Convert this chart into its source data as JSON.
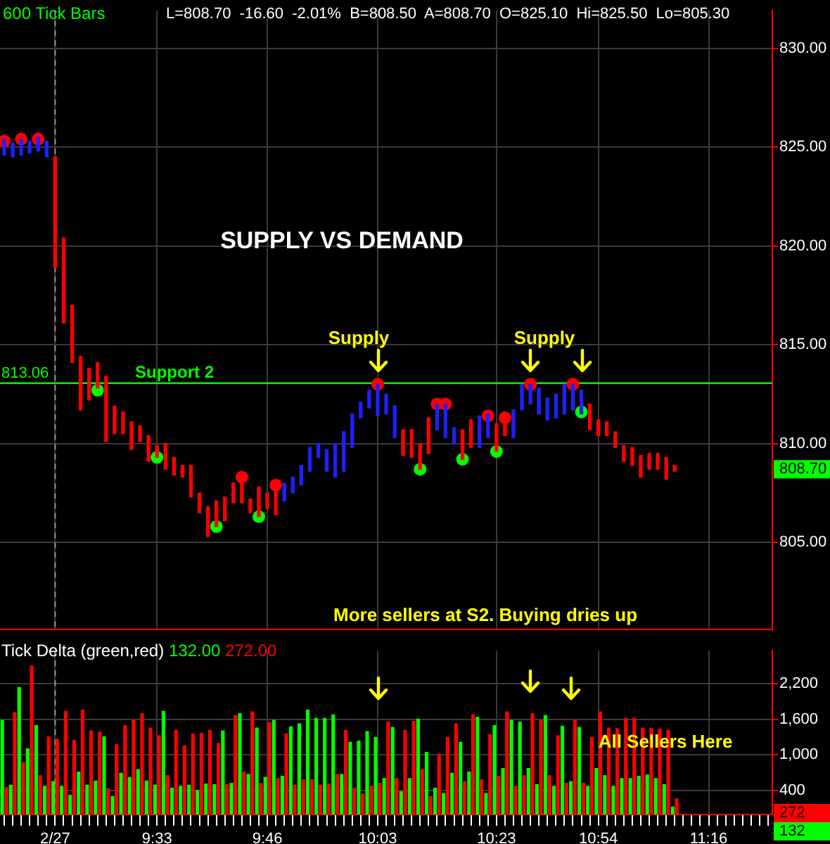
{
  "chart_data": [
    {
      "type": "bar",
      "title": "600 Tick Bars",
      "subtitle": "L=808.70  -16.60  -2.01%  B=808.50  A=808.70  O=825.10  Hi=825.50  Lo=805.30",
      "categories": [
        null,
        null,
        null,
        null,
        null,
        null,
        "2/27",
        null,
        null,
        null,
        null,
        null,
        null,
        null,
        null,
        null,
        null,
        null,
        "9:33",
        null,
        null,
        null,
        null,
        null,
        null,
        null,
        null,
        null,
        null,
        null,
        null,
        "9:46",
        null,
        null,
        null,
        null,
        null,
        null,
        null,
        null,
        null,
        null,
        null,
        null,
        "10:03",
        null,
        null,
        null,
        null,
        null,
        null,
        null,
        null,
        null,
        null,
        null,
        null,
        null,
        "10:23",
        null,
        null,
        null,
        null,
        null,
        null,
        null,
        null,
        null,
        null,
        null,
        "10:54",
        null,
        null,
        null,
        null,
        null,
        null,
        null,
        null,
        null,
        null,
        null,
        null,
        "11:16",
        null,
        null,
        null,
        null,
        null,
        null,
        null
      ],
      "base": [
        824.6,
        824.5,
        824.6,
        824.7,
        824.8,
        824.5,
        818.9,
        816.1,
        814.1,
        811.7,
        812.2,
        812.8,
        810.1,
        810.5,
        810.5,
        809.7,
        810.1,
        809.1,
        809.3,
        808.7,
        808.4,
        808.3,
        807.3,
        806.5,
        805.3,
        805.8,
        806.1,
        807.0,
        807.0,
        806.5,
        806.3,
        806.7,
        806.4,
        807.1,
        807.5,
        807.9,
        808.6,
        809.3,
        808.6,
        808.3,
        808.6,
        809.8,
        811.3,
        811.8,
        811.4,
        811.5,
        810.3,
        809.4,
        809.3,
        808.7,
        809.5,
        810.7,
        810.3,
        810.0,
        809.2,
        809.8,
        809.8,
        810.3,
        809.6,
        810.4,
        810.3,
        811.7,
        812.0,
        811.5,
        811.2,
        811.3,
        811.5,
        811.7,
        811.5,
        810.7,
        810.4,
        810.4,
        809.8,
        809.1,
        808.9,
        808.3,
        808.7,
        808.7,
        808.2,
        808.6,
        null,
        null,
        null,
        null,
        null,
        null,
        null,
        null,
        null,
        null,
        null
      ],
      "values": [
        0.8,
        0.7,
        0.8,
        0.6,
        0.7,
        0.8,
        5.6,
        4.3,
        2.9,
        2.7,
        1.6,
        1.3,
        3.3,
        1.4,
        1.1,
        1.4,
        0.8,
        1.3,
        0.6,
        1.3,
        0.9,
        0.6,
        1.6,
        1.0,
        1.5,
        1.3,
        1.2,
        1.0,
        1.0,
        0.7,
        1.5,
        0.8,
        1.2,
        0.9,
        0.8,
        1.0,
        1.2,
        0.7,
        1.1,
        1.7,
        2.0,
        1.7,
        0.8,
        0.9,
        1.6,
        1.0,
        1.6,
        1.3,
        1.4,
        1.3,
        1.8,
        1.3,
        1.7,
        0.8,
        1.5,
        1.4,
        1.6,
        1.2,
        1.4,
        0.6,
        1.4,
        1.3,
        1.0,
        1.3,
        1.1,
        1.2,
        1.5,
        1.3,
        1.2,
        1.3,
        0.8,
        0.7,
        0.8,
        0.8,
        0.9,
        1.1,
        0.8,
        0.8,
        1.1,
        0.3,
        null,
        null,
        null,
        null,
        null,
        null,
        null,
        null,
        null,
        null,
        null
      ],
      "colors": [
        "#2020ff",
        "#2020ff",
        "#2020ff",
        "#2020ff",
        "#2020ff",
        "#2020ff",
        "#ff0000",
        "#ff0000",
        "#ff0000",
        "#ff0000",
        "#ff0000",
        "#ff0000",
        "#ff0000",
        "#ff0000",
        "#ff0000",
        "#ff0000",
        "#ff0000",
        "#ff0000",
        "#ff0000",
        "#ff0000",
        "#ff0000",
        "#ff0000",
        "#ff0000",
        "#ff0000",
        "#ff0000",
        "#ff0000",
        "#ff0000",
        "#ff0000",
        "#ff0000",
        "#ff0000",
        "#ff0000",
        "#ff0000",
        "#ff0000",
        "#2020ff",
        "#2020ff",
        "#2020ff",
        "#2020ff",
        "#2020ff",
        "#2020ff",
        "#2020ff",
        "#2020ff",
        "#2020ff",
        "#2020ff",
        "#2020ff",
        "#2020ff",
        "#2020ff",
        "#2020ff",
        "#ff0000",
        "#ff0000",
        "#ff0000",
        "#ff0000",
        "#2020ff",
        "#2020ff",
        "#2020ff",
        "#ff0000",
        "#ff0000",
        "#2020ff",
        "#2020ff",
        "#ff0000",
        "#ff0000",
        "#2020ff",
        "#2020ff",
        "#2020ff",
        "#2020ff",
        "#2020ff",
        "#2020ff",
        "#2020ff",
        "#2020ff",
        "#2020ff",
        "#ff0000",
        "#ff0000",
        "#ff0000",
        "#ff0000",
        "#ff0000",
        "#ff0000",
        "#ff0000",
        "#ff0000",
        "#ff0000",
        "#ff0000",
        "#ff0000",
        null,
        null,
        null,
        null,
        null,
        null,
        null,
        null,
        null,
        null,
        null
      ],
      "series": [
        {
          "type": "scatter",
          "color": "#ff0000",
          "values": [
            825.3,
            null,
            825.4,
            null,
            825.4,
            null,
            null,
            null,
            null,
            null,
            null,
            null,
            null,
            null,
            null,
            null,
            null,
            null,
            null,
            null,
            null,
            null,
            null,
            null,
            null,
            null,
            null,
            null,
            808.3,
            null,
            null,
            null,
            807.9,
            null,
            null,
            null,
            null,
            null,
            null,
            null,
            null,
            null,
            null,
            null,
            813.0,
            null,
            null,
            null,
            null,
            null,
            null,
            812.0,
            812.0,
            null,
            null,
            null,
            null,
            811.4,
            null,
            811.3,
            null,
            null,
            813.0,
            null,
            null,
            null,
            null,
            813.0,
            null,
            null,
            null,
            null,
            null,
            null,
            null,
            null,
            null,
            null,
            null,
            null,
            null,
            null,
            null,
            null,
            null,
            null,
            null,
            null,
            null,
            null,
            null
          ]
        },
        {
          "type": "scatter",
          "color": "#00ff00",
          "values": [
            null,
            null,
            null,
            null,
            null,
            null,
            null,
            null,
            null,
            null,
            null,
            812.7,
            null,
            null,
            null,
            null,
            null,
            null,
            809.3,
            null,
            null,
            null,
            null,
            null,
            null,
            805.8,
            null,
            null,
            null,
            null,
            806.3,
            null,
            null,
            null,
            null,
            null,
            null,
            null,
            null,
            null,
            null,
            null,
            null,
            null,
            null,
            null,
            null,
            null,
            null,
            808.7,
            null,
            null,
            null,
            null,
            809.2,
            null,
            null,
            null,
            809.6,
            null,
            null,
            null,
            null,
            null,
            null,
            null,
            null,
            null,
            811.6,
            null,
            null,
            null,
            null,
            null,
            null,
            null,
            null,
            null,
            null,
            null,
            null,
            null,
            null,
            null,
            null,
            null,
            null,
            null,
            null,
            null,
            null
          ]
        }
      ],
      "ylim": [
        800.6,
        831.9
      ],
      "yticks": [
        {
          "value": 805,
          "label": "805.00"
        },
        {
          "value": 810,
          "label": "810.00"
        },
        {
          "value": 815,
          "label": "815.00"
        },
        {
          "value": 820,
          "label": "820.00"
        },
        {
          "value": 825,
          "label": "825.00"
        },
        {
          "value": 830,
          "label": "830.00"
        }
      ],
      "ref_lines": [
        {
          "axis": "y",
          "value": 813.06,
          "label": "Support 2",
          "color": "#00ff00"
        },
        {
          "axis": "x",
          "value": "2/27",
          "color": "#909090",
          "line_style": "dashed"
        }
      ],
      "annotations": [
        "SUPPLY VS DEMAND",
        "Supply",
        "Supply",
        {
          "text": "813.06",
          "y": 813.06
        },
        {
          "text": "808.70",
          "y": 808.7
        },
        "More sellers at S2. Buying dries up"
      ],
      "grid": true,
      "legend": false,
      "marker": "circle",
      "tick_labels": "y"
    },
    {
      "type": "bar",
      "title": "Tick Delta (green,red)",
      "categories": [
        null,
        null,
        null,
        null,
        null,
        null,
        "2/27",
        null,
        null,
        null,
        null,
        null,
        null,
        null,
        null,
        null,
        null,
        null,
        "9:33",
        null,
        null,
        null,
        null,
        null,
        null,
        null,
        null,
        null,
        null,
        null,
        null,
        "9:46",
        null,
        null,
        null,
        null,
        null,
        null,
        null,
        null,
        null,
        null,
        null,
        null,
        "10:03",
        null,
        null,
        null,
        null,
        null,
        null,
        null,
        null,
        null,
        null,
        null,
        null,
        null,
        "10:23",
        null,
        null,
        null,
        null,
        null,
        null,
        null,
        null,
        null,
        null,
        null,
        "10:54",
        null,
        null,
        null,
        null,
        null,
        null,
        null,
        null,
        null,
        null,
        null,
        null,
        "11:16",
        null,
        null,
        null,
        null,
        null,
        null,
        null
      ],
      "series": [
        {
          "color": "#00ff00",
          "values": [
            1590,
            500,
            2140,
            1110,
            1500,
            480,
            560,
            480,
            330,
            720,
            500,
            570,
            1310,
            310,
            700,
            630,
            760,
            570,
            500,
            1740,
            450,
            480,
            500,
            410,
            520,
            510,
            1410,
            530,
            1700,
            680,
            1460,
            630,
            1590,
            650,
            1480,
            1530,
            1760,
            1620,
            1620,
            1680,
            680,
            1220,
            1240,
            1400,
            1300,
            610,
            1470,
            390,
            610,
            1610,
            1050,
            450,
            360,
            700,
            1220,
            720,
            1640,
            360,
            1500,
            780,
            1590,
            1560,
            780,
            510,
            1670,
            480,
            1490,
            560,
            1470,
            480,
            780,
            660,
            480,
            610,
            610,
            650,
            670,
            610,
            510,
            132,
            null,
            null,
            null,
            null,
            null,
            null,
            null,
            null,
            null,
            null,
            null
          ]
        },
        {
          "color": "#ff0000",
          "values": [
            460,
            1720,
            880,
            2500,
            660,
            1310,
            1270,
            1740,
            1250,
            1760,
            1410,
            1390,
            440,
            1180,
            1500,
            1590,
            1700,
            1460,
            1330,
            660,
            1420,
            1160,
            1360,
            1370,
            1420,
            1200,
            510,
            1670,
            720,
            1730,
            530,
            1550,
            610,
            1360,
            500,
            590,
            590,
            500,
            520,
            680,
            1420,
            450,
            350,
            480,
            530,
            1560,
            610,
            1420,
            1570,
            760,
            310,
            1020,
            1300,
            1530,
            560,
            1680,
            590,
            1350,
            650,
            1730,
            480,
            660,
            1700,
            1590,
            660,
            1330,
            530,
            1590,
            530,
            1300,
            1730,
            1460,
            1450,
            1620,
            1620,
            1460,
            1450,
            1440,
            1420,
            272,
            null,
            null,
            null,
            null,
            null,
            null,
            null,
            null,
            null,
            null,
            null
          ]
        }
      ],
      "ylim": [
        0,
        2750
      ],
      "yticks": [
        {
          "value": 400,
          "label": "400"
        },
        {
          "value": 1000,
          "label": "1,000"
        },
        {
          "value": 1600,
          "label": "1,600"
        },
        {
          "value": 2200,
          "label": "2,200"
        }
      ],
      "ref_lines": [
        {
          "axis": "x",
          "value": "2/27",
          "color": "#909090",
          "line_style": "dashed"
        }
      ],
      "annotations": [
        "132.00",
        "272.00",
        "All Sellers Here",
        "272",
        "132"
      ],
      "grid": true,
      "legend": false
    }
  ]
}
